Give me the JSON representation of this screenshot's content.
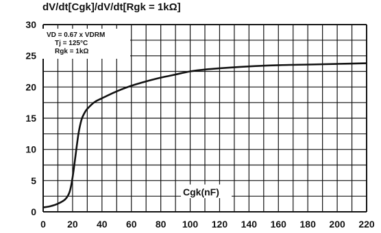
{
  "chart_data": {
    "type": "line",
    "title": "dV/dt[Cgk]/dV/dt[Rgk = 1kΩ]",
    "xlabel": "Cgk(nF)",
    "ylabel": "",
    "xlim": [
      0,
      220
    ],
    "ylim": [
      0,
      30
    ],
    "x_ticks": [
      0,
      20,
      40,
      60,
      80,
      100,
      120,
      140,
      160,
      180,
      200,
      220
    ],
    "y_ticks": [
      0,
      5,
      10,
      15,
      20,
      25,
      30
    ],
    "grid": true,
    "conditions": [
      "VD = 0.67 x VDRM",
      "Tj = 125°C",
      "Rgk = 1kΩ"
    ],
    "series": [
      {
        "x": [
          0,
          5,
          10,
          15,
          18,
          20,
          22,
          24,
          26,
          28,
          30,
          35,
          40,
          50,
          60,
          70,
          80,
          90,
          100,
          110,
          120,
          140,
          160,
          180,
          200,
          220
        ],
        "y": [
          0.7,
          0.9,
          1.3,
          2.0,
          3.2,
          5.5,
          9.0,
          12.5,
          14.7,
          15.8,
          16.5,
          17.6,
          18.2,
          19.3,
          20.2,
          20.9,
          21.5,
          22.0,
          22.5,
          22.8,
          23.0,
          23.3,
          23.5,
          23.6,
          23.7,
          23.8
        ]
      }
    ]
  }
}
